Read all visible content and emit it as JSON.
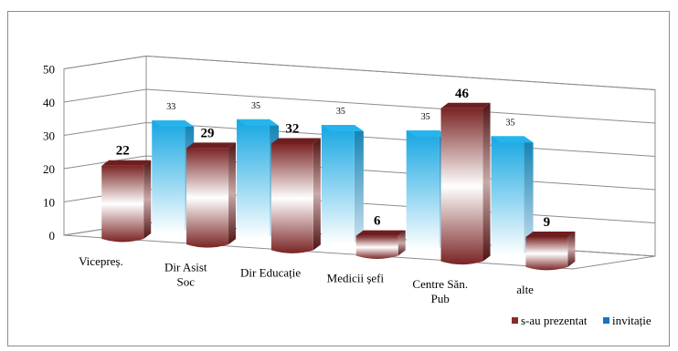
{
  "chart_data": {
    "type": "bar",
    "categories": [
      "Vicepreș.",
      "Dir Asist Soc",
      "Dir Educație",
      "Medicii șefi",
      "Centre Săn. Pub",
      "alte"
    ],
    "category_lines": [
      [
        "Vicepreș."
      ],
      [
        "Dir Asist",
        "Soc"
      ],
      [
        "Dir Educație"
      ],
      [
        "Medicii șefi"
      ],
      [
        "Centre Săn.",
        "Pub"
      ],
      [
        "alte"
      ]
    ],
    "series": [
      {
        "name": "s-au prezentat",
        "values": [
          22,
          29,
          32,
          6,
          46,
          9
        ],
        "color": "#8b2a2a"
      },
      {
        "name": "invitație",
        "values": [
          33,
          35,
          35,
          35,
          35,
          null
        ],
        "color": "#1aa7e0"
      }
    ],
    "ylim": [
      0,
      50
    ],
    "yticks": [
      0,
      10,
      20,
      30,
      40,
      50
    ],
    "grid": true,
    "legend": "bottom-right",
    "three_d": true
  }
}
